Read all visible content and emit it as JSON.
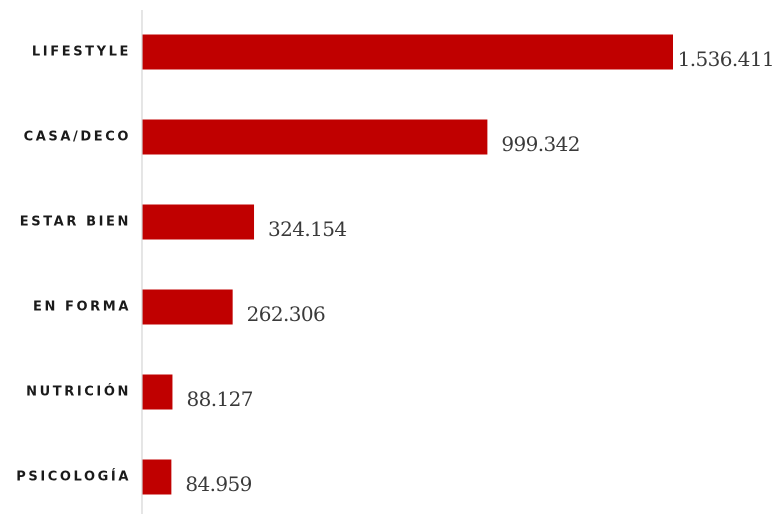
{
  "chart_data": {
    "type": "bar",
    "orientation": "horizontal",
    "categories": [
      "LIFESTYLE",
      "CASA/DECO",
      "ESTAR BIEN",
      "EN FORMA",
      "NUTRICIÓN",
      "PSICOLOGÍA"
    ],
    "values": [
      1536411,
      999342,
      324154,
      262306,
      88127,
      84959
    ],
    "value_labels": [
      "1.536.411",
      "999.342",
      "324.154",
      "262.306",
      "88.127",
      "84.959"
    ],
    "xlim": [
      0,
      1536411
    ],
    "grid": false,
    "legend": "none"
  },
  "colors": {
    "bar": "#c00000",
    "axis": "#d4d4d4"
  }
}
